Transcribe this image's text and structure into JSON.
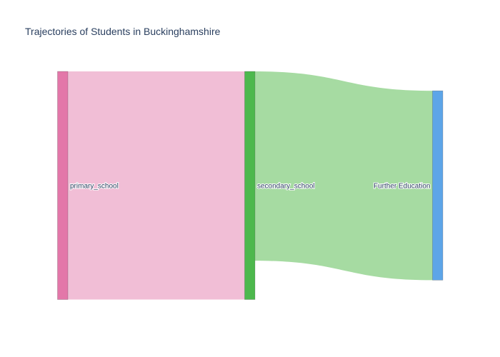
{
  "chart_data": {
    "type": "sankey",
    "title": "Trajectories of Students in Buckinghamshire",
    "nodes": [
      {
        "id": "primary_school",
        "label": "primary_school",
        "color": "#e377a9",
        "column": 0
      },
      {
        "id": "secondary_school",
        "label": "secondary_school",
        "color": "#4db84d",
        "column": 1
      },
      {
        "id": "further_education",
        "label": "Further Education",
        "color": "#5da5e8",
        "column": 2
      }
    ],
    "links": [
      {
        "source": "primary_school",
        "target": "secondary_school",
        "value": 100,
        "color": "#f1bed6"
      },
      {
        "source": "secondary_school",
        "target": "further_education",
        "value": 83,
        "color": "#a6dba2"
      }
    ]
  }
}
